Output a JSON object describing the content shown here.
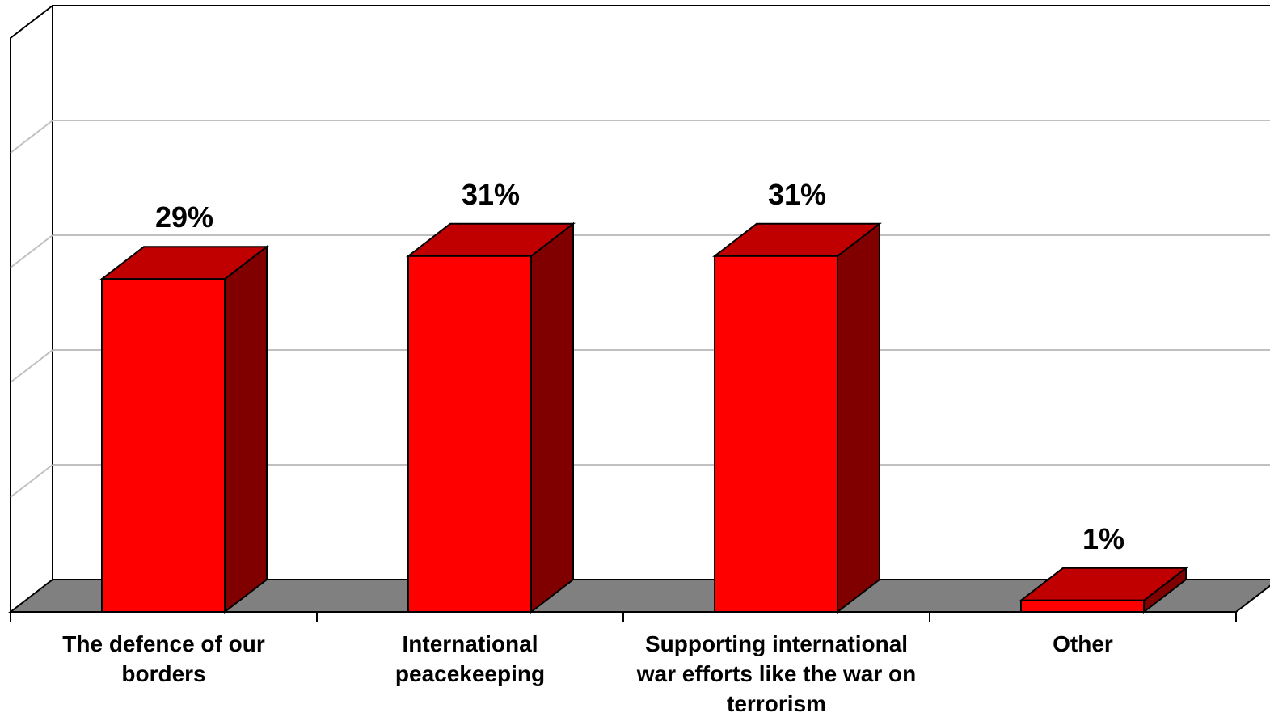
{
  "chart_data": {
    "type": "bar",
    "style": "3d-column",
    "categories": [
      [
        "The defence of our",
        "borders"
      ],
      [
        "International",
        "peacekeeping"
      ],
      [
        "Supporting international",
        "war efforts like the war on",
        "terrorism"
      ],
      [
        "Other"
      ]
    ],
    "values": [
      29,
      31,
      31,
      1
    ],
    "value_labels": [
      "29%",
      "31%",
      "31%",
      "1%"
    ],
    "title": "",
    "xlabel": "",
    "ylabel": "",
    "ylim": [
      0,
      50
    ],
    "grid": true,
    "legend": "none",
    "colors": {
      "bar_front": "#ff0000",
      "bar_top": "#c00000",
      "bar_side": "#800000",
      "floor": "#808080",
      "grid": "#c0c0c0"
    }
  }
}
